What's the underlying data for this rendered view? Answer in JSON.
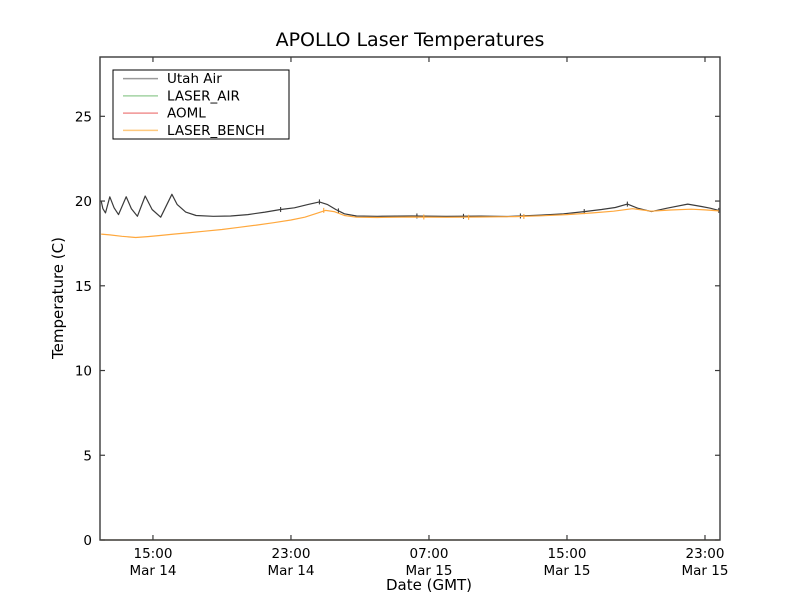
{
  "chart_data": {
    "type": "line",
    "title": "APOLLO Laser Temperatures",
    "xlabel": "Date (GMT)",
    "ylabel": "Temperature (C)",
    "background_color": "#ffffff",
    "axis_color": "#3a3a3a",
    "grid": false,
    "ylim": [
      0,
      28.5
    ],
    "yticks": [
      0,
      5,
      10,
      15,
      20,
      25
    ],
    "x_domain_hours_from_mar14_0000": [
      11.93,
      47.87
    ],
    "xticks": [
      {
        "hour": 15,
        "time": "15:00",
        "date": "Mar 14"
      },
      {
        "hour": 23,
        "time": "23:00",
        "date": "Mar 14"
      },
      {
        "hour": 31,
        "time": "07:00",
        "date": "Mar 15"
      },
      {
        "hour": 39,
        "time": "15:00",
        "date": "Mar 15"
      },
      {
        "hour": 47,
        "time": "23:00",
        "date": "Mar 15"
      }
    ],
    "legend": {
      "position": "upper-left",
      "entries": [
        "Utah Air",
        "LASER_AIR",
        "AOML",
        "LASER_BENCH"
      ]
    },
    "series": [
      {
        "name": "Utah Air",
        "color": "#3b3b3b",
        "legend_color": "#9a9a9a",
        "opacity": 1,
        "points": [
          [
            12.0,
            20.0
          ],
          [
            12.1,
            19.55
          ],
          [
            12.25,
            19.3
          ],
          [
            12.5,
            20.25
          ],
          [
            12.75,
            19.6
          ],
          [
            13.0,
            19.2
          ],
          [
            13.45,
            20.25
          ],
          [
            13.75,
            19.55
          ],
          [
            14.1,
            19.1
          ],
          [
            14.55,
            20.3
          ],
          [
            14.95,
            19.5
          ],
          [
            15.45,
            19.05
          ],
          [
            16.1,
            20.4
          ],
          [
            16.4,
            19.8
          ],
          [
            16.9,
            19.35
          ],
          [
            17.5,
            19.15
          ],
          [
            18.5,
            19.1
          ],
          [
            19.5,
            19.12
          ],
          [
            20.5,
            19.2
          ],
          [
            21.5,
            19.35
          ],
          [
            22.4,
            19.5
          ],
          [
            23.2,
            19.6
          ],
          [
            24.0,
            19.8
          ],
          [
            24.65,
            19.95
          ],
          [
            25.1,
            19.8
          ],
          [
            25.6,
            19.5
          ],
          [
            26.1,
            19.25
          ],
          [
            26.8,
            19.12
          ],
          [
            28.0,
            19.1
          ],
          [
            30.0,
            19.12
          ],
          [
            32.0,
            19.1
          ],
          [
            34.0,
            19.11
          ],
          [
            35.5,
            19.09
          ],
          [
            36.3,
            19.12
          ],
          [
            37.5,
            19.17
          ],
          [
            38.8,
            19.25
          ],
          [
            40.0,
            19.38
          ],
          [
            41.0,
            19.5
          ],
          [
            41.8,
            19.62
          ],
          [
            42.5,
            19.82
          ],
          [
            43.1,
            19.58
          ],
          [
            43.9,
            19.38
          ],
          [
            44.8,
            19.58
          ],
          [
            46.0,
            19.82
          ],
          [
            46.8,
            19.68
          ],
          [
            47.3,
            19.58
          ],
          [
            47.8,
            19.45
          ]
        ],
        "point_markers": [
          [
            22.4,
            19.5
          ],
          [
            24.65,
            19.95
          ],
          [
            25.75,
            19.42
          ],
          [
            30.3,
            19.12
          ],
          [
            33.0,
            19.1
          ],
          [
            36.3,
            19.12
          ],
          [
            40.0,
            19.38
          ],
          [
            42.5,
            19.82
          ],
          [
            47.8,
            19.45
          ]
        ]
      },
      {
        "name": "LASER_AIR",
        "color": "#8fca8f",
        "legend_color": "#a3d3a3",
        "opacity": 0.9,
        "points": [
          [
            12.0,
            0
          ],
          [
            47.8,
            0
          ]
        ],
        "point_markers": []
      },
      {
        "name": "AOML",
        "color": "#cf4a38",
        "legend_color": "#f19292",
        "opacity": 0.55,
        "points": [
          [
            12.0,
            0
          ],
          [
            47.8,
            0
          ]
        ],
        "point_markers": []
      },
      {
        "name": "LASER_BENCH",
        "color": "#ffa83d",
        "legend_color": "#fec97e",
        "opacity": 1,
        "points": [
          [
            12.0,
            18.05
          ],
          [
            12.5,
            18.0
          ],
          [
            13.2,
            17.92
          ],
          [
            14.0,
            17.85
          ],
          [
            14.7,
            17.9
          ],
          [
            15.4,
            17.97
          ],
          [
            16.2,
            18.05
          ],
          [
            17.0,
            18.12
          ],
          [
            18.0,
            18.22
          ],
          [
            19.0,
            18.32
          ],
          [
            20.0,
            18.45
          ],
          [
            21.0,
            18.58
          ],
          [
            22.0,
            18.72
          ],
          [
            23.0,
            18.88
          ],
          [
            23.8,
            19.05
          ],
          [
            24.5,
            19.28
          ],
          [
            25.0,
            19.45
          ],
          [
            25.5,
            19.38
          ],
          [
            26.1,
            19.15
          ],
          [
            26.8,
            19.05
          ],
          [
            28.0,
            19.03
          ],
          [
            30.0,
            19.06
          ],
          [
            32.0,
            19.04
          ],
          [
            34.0,
            19.06
          ],
          [
            36.0,
            19.08
          ],
          [
            37.5,
            19.13
          ],
          [
            39.0,
            19.2
          ],
          [
            40.5,
            19.3
          ],
          [
            41.7,
            19.4
          ],
          [
            42.8,
            19.55
          ],
          [
            43.9,
            19.4
          ],
          [
            45.0,
            19.47
          ],
          [
            46.2,
            19.52
          ],
          [
            47.0,
            19.48
          ],
          [
            47.8,
            19.42
          ]
        ],
        "point_markers": [
          [
            24.9,
            19.45
          ],
          [
            30.7,
            19.06
          ],
          [
            33.3,
            19.04
          ],
          [
            36.5,
            19.09
          ]
        ]
      }
    ]
  }
}
